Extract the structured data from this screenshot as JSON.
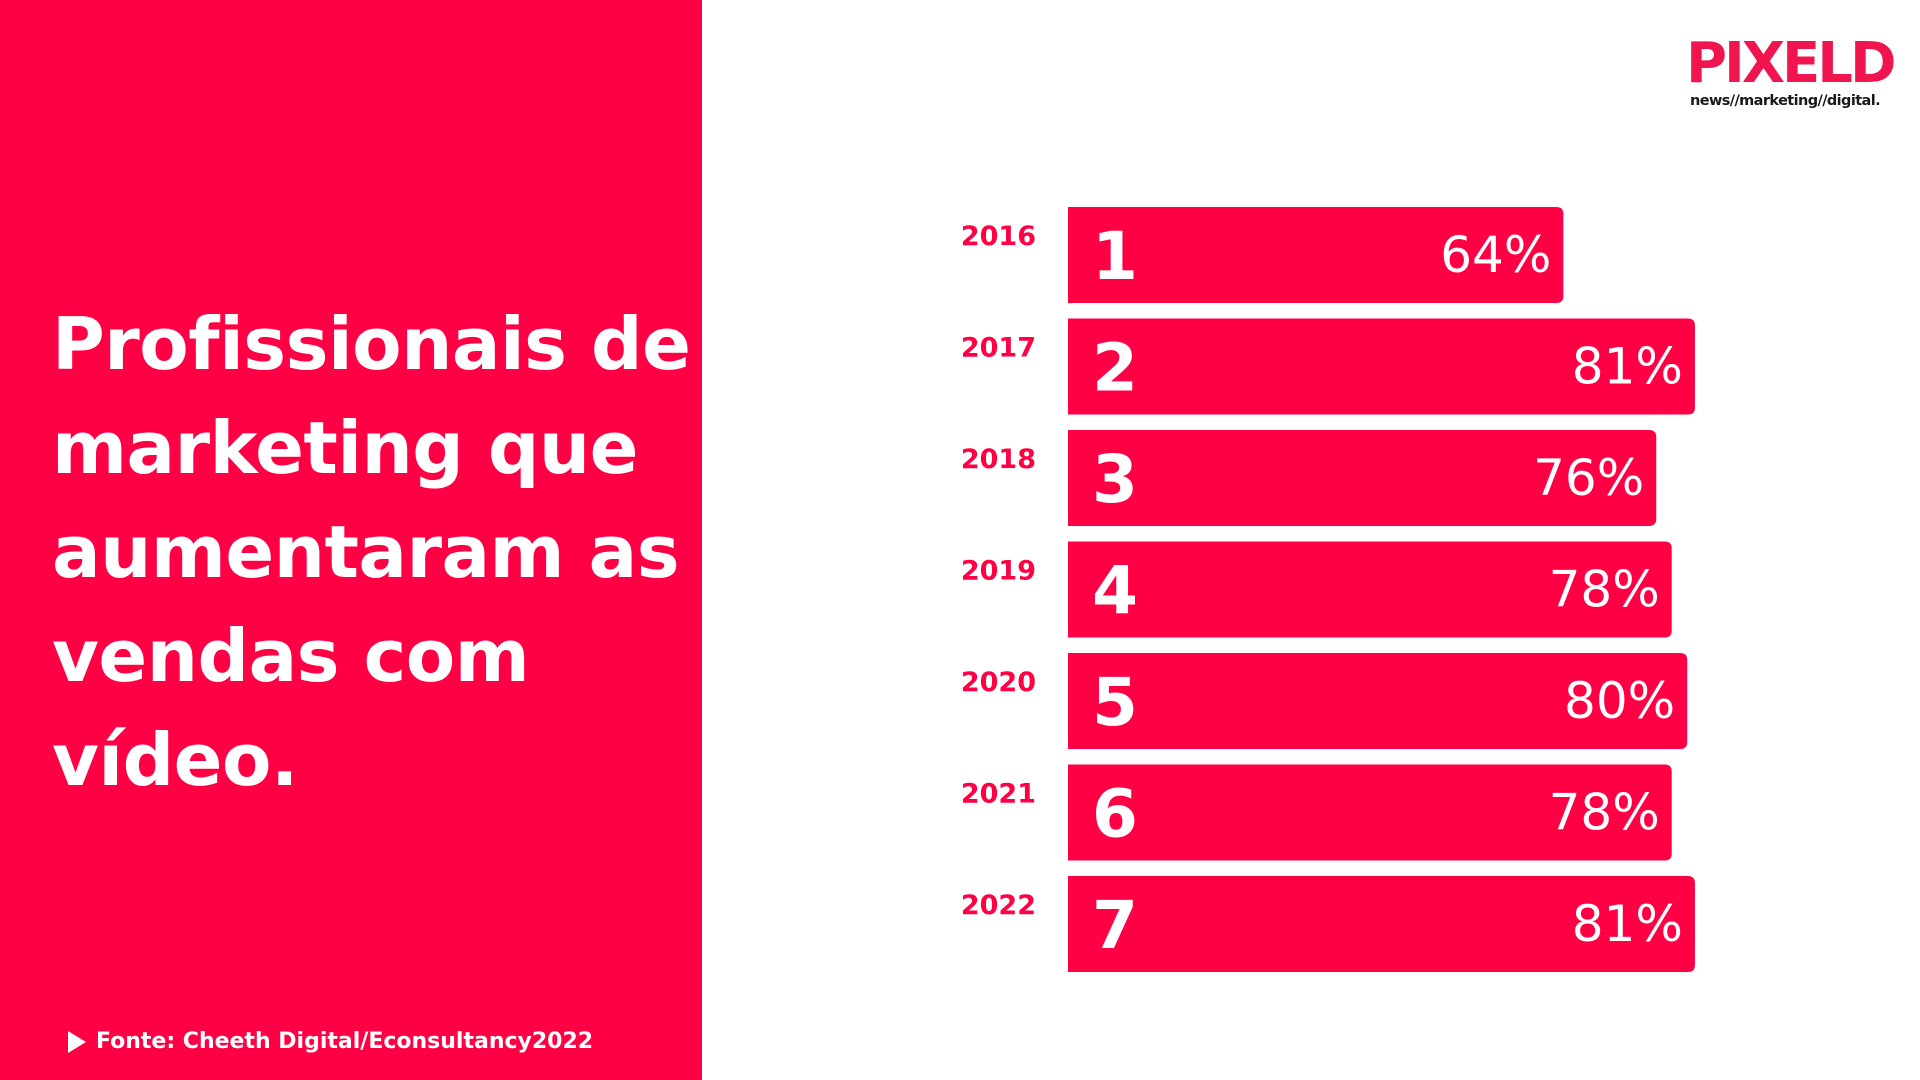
{
  "headline": "Profissionais de marketing que aumentaram as vendas com vídeo.",
  "source": "Fonte: Cheeth Digital/Econsultancy2022",
  "logo": {
    "wordmark": "PIXELD",
    "tagline": "news//marketing//digital."
  },
  "colors": {
    "accent": "#ff0044",
    "logo_red": "#f0154f",
    "text_on_accent": "#ffffff",
    "tagline_text": "#1a1a1a"
  },
  "icons": {
    "source_marker": "play-triangle-icon"
  },
  "chart_data": {
    "type": "bar",
    "orientation": "horizontal",
    "categories": [
      "2016",
      "2017",
      "2018",
      "2019",
      "2020",
      "2021",
      "2022"
    ],
    "ranks": [
      "1",
      "2",
      "3",
      "4",
      "5",
      "6",
      "7"
    ],
    "values": [
      64,
      81,
      76,
      78,
      80,
      78,
      81
    ],
    "value_labels": [
      "64%",
      "81%",
      "76%",
      "78%",
      "80%",
      "78%",
      "81%"
    ],
    "unit": "%",
    "grid": false,
    "legend": "none"
  }
}
